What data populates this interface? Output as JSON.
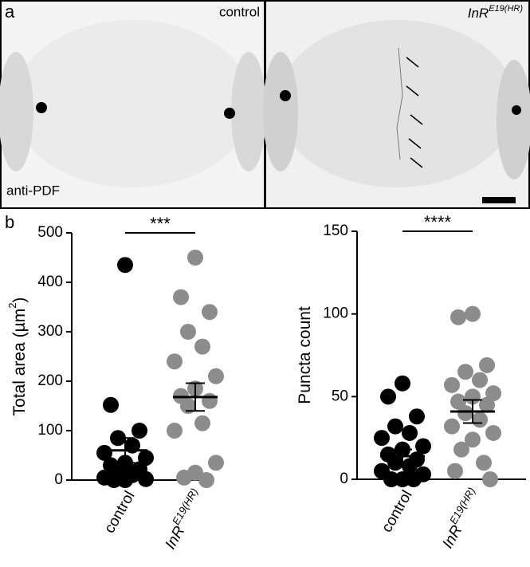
{
  "panel_labels": [
    "a",
    "b"
  ],
  "images": [
    {
      "label": "control"
    },
    {
      "label": "InR",
      "superscript": "E19(HR)"
    }
  ],
  "stain": "anti-PDF",
  "chart_data": [
    {
      "type": "dotplot",
      "ylabel": [
        "Total area (µm",
        "2",
        ")"
      ],
      "categories": [
        "control",
        "InR"
      ],
      "category_superscript": "E19(HR)",
      "ylim": [
        0,
        500
      ],
      "yticks": [
        0,
        100,
        200,
        300,
        400,
        500
      ],
      "significance": "***",
      "groups": [
        {
          "color": "#000000",
          "values": [
            435,
            152,
            100,
            85,
            70,
            55,
            45,
            35,
            30,
            22,
            15,
            10,
            5,
            2,
            0,
            0
          ],
          "mean": 60,
          "error": 25
        },
        {
          "color": "#8c8c8c",
          "values": [
            450,
            370,
            340,
            300,
            270,
            240,
            210,
            185,
            170,
            160,
            150,
            115,
            100,
            35,
            15,
            5,
            0
          ],
          "mean": 168,
          "error": 28
        }
      ]
    },
    {
      "type": "dotplot",
      "ylabel": [
        "Puncta count"
      ],
      "categories": [
        "control",
        "InR"
      ],
      "category_superscript": "E19(HR)",
      "ylim": [
        0,
        150
      ],
      "yticks": [
        0,
        50,
        100,
        150
      ],
      "significance": "****",
      "groups": [
        {
          "color": "#000000",
          "values": [
            58,
            50,
            38,
            32,
            28,
            25,
            20,
            18,
            15,
            12,
            10,
            8,
            5,
            3,
            0,
            0,
            0
          ],
          "mean": 14,
          "error": 4
        },
        {
          "color": "#8c8c8c",
          "values": [
            100,
            98,
            69,
            65,
            60,
            57,
            52,
            50,
            47,
            45,
            40,
            36,
            32,
            28,
            24,
            18,
            10,
            5,
            0
          ],
          "mean": 41,
          "error": 7
        }
      ]
    }
  ]
}
